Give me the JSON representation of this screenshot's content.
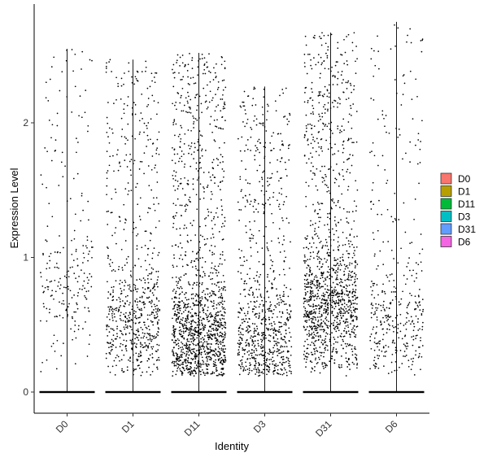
{
  "chart_data": {
    "type": "scatter",
    "subtype": "violin-jitter",
    "xlabel": "Identity",
    "ylabel": "Expression Level",
    "categories": [
      "D0",
      "D1",
      "D11",
      "D3",
      "D31",
      "D6"
    ],
    "ylim": [
      -0.15,
      2.87
    ],
    "yticks": [
      0,
      1,
      2
    ],
    "grid": false,
    "legend_position": "right",
    "legend": [
      {
        "name": "D0",
        "color": "#F8766D"
      },
      {
        "name": "D1",
        "color": "#B79F00"
      },
      {
        "name": "D11",
        "color": "#00BA38"
      },
      {
        "name": "D3",
        "color": "#00BFC4"
      },
      {
        "name": "D31",
        "color": "#619CFF"
      },
      {
        "name": "D6",
        "color": "#F564E3"
      }
    ],
    "point_color": "#000000",
    "series": [
      {
        "name": "D0",
        "max": 2.55,
        "nonzero_points": 230,
        "dense_center": 0.8
      },
      {
        "name": "D1",
        "max": 2.47,
        "nonzero_points": 700,
        "dense_center": 0.5
      },
      {
        "name": "D11",
        "max": 2.52,
        "nonzero_points": 1400,
        "dense_center": 0.4
      },
      {
        "name": "D3",
        "max": 2.27,
        "nonzero_points": 800,
        "dense_center": 0.35
      },
      {
        "name": "D31",
        "max": 2.67,
        "nonzero_points": 1300,
        "dense_center": 0.65
      },
      {
        "name": "D6",
        "max": 2.75,
        "nonzero_points": 380,
        "dense_center": 0.5
      }
    ]
  }
}
